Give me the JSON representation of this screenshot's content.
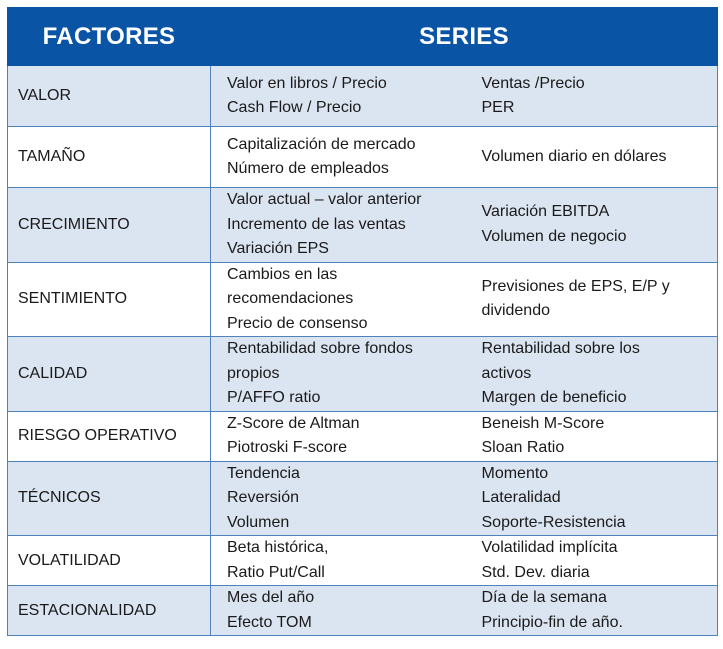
{
  "header": {
    "col1": "FACTORES",
    "col2": "SERIES"
  },
  "rows": [
    {
      "factor": "VALOR",
      "series1": [
        "Valor en libros / Precio",
        "Cash Flow / Precio"
      ],
      "series2": [
        "Ventas /Precio",
        "PER"
      ]
    },
    {
      "factor": "TAMAÑO",
      "series1": [
        "Capitalización de mercado",
        "Número de empleados"
      ],
      "series2": [
        "Volumen diario en dólares"
      ]
    },
    {
      "factor": "CRECIMIENTO",
      "series1": [
        "Valor actual – valor anterior",
        "Incremento de las ventas",
        "Variación EPS"
      ],
      "series2": [
        "Variación EBITDA",
        "Volumen de negocio"
      ]
    },
    {
      "factor": "SENTIMIENTO",
      "series1": [
        "Cambios en las",
        "recomendaciones",
        "Precio de consenso"
      ],
      "series2": [
        "Previsiones de EPS, E/P y",
        "dividendo"
      ]
    },
    {
      "factor": "CALIDAD",
      "series1": [
        "Rentabilidad sobre fondos",
        "propios",
        "P/AFFO ratio"
      ],
      "series2": [
        "Rentabilidad sobre los",
        "activos",
        "Margen de beneficio"
      ]
    },
    {
      "factor": "RIESGO OPERATIVO",
      "series1": [
        "Z-Score de Altman",
        "Piotroski F-score"
      ],
      "series2": [
        "Beneish M-Score",
        "Sloan Ratio"
      ]
    },
    {
      "factor": "TÉCNICOS",
      "series1": [
        "Tendencia",
        "Reversión",
        "Volumen"
      ],
      "series2": [
        "Momento",
        "Lateralidad",
        "Soporte-Resistencia"
      ]
    },
    {
      "factor": "VOLATILIDAD",
      "series1": [
        "Beta histórica,",
        "Ratio Put/Call"
      ],
      "series2": [
        "Volatilidad implícita",
        "Std. Dev. diaria"
      ]
    },
    {
      "factor": "ESTACIONALIDAD",
      "series1": [
        "Mes del año",
        "Efecto TOM"
      ],
      "series2": [
        "Día de la semana",
        "Principio-fin de año."
      ]
    }
  ]
}
